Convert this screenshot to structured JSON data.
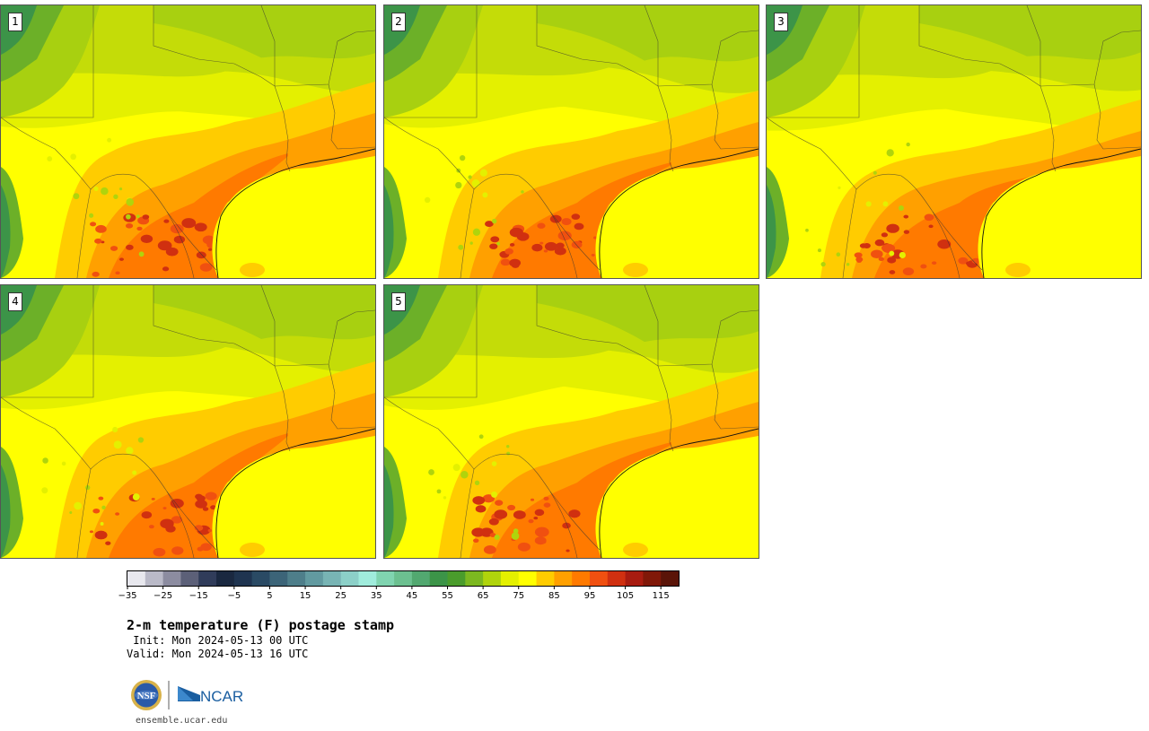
{
  "panels": [
    {
      "label": "1",
      "variant": 0
    },
    {
      "label": "2",
      "variant": 1
    },
    {
      "label": "3",
      "variant": 2
    },
    {
      "label": "4",
      "variant": 3
    },
    {
      "label": "5",
      "variant": 4
    }
  ],
  "colorbar": {
    "colors": [
      "#e8e8ee",
      "#babac8",
      "#8c8ca0",
      "#5c6078",
      "#303c5a",
      "#1a2840",
      "#1f3450",
      "#2a4a64",
      "#3c6478",
      "#4e7e8a",
      "#629aa0",
      "#78b4b4",
      "#8cd0c8",
      "#a0ecdc",
      "#80d4b0",
      "#6cc090",
      "#52a870",
      "#3c9448",
      "#4a9c2c",
      "#7cb820",
      "#b0d40c",
      "#e4f000",
      "#ffff00",
      "#ffcc00",
      "#ffa000",
      "#ff7a00",
      "#f05010",
      "#d03010",
      "#a81c10",
      "#801808",
      "#5a1408"
    ],
    "tick_labels": [
      "−35",
      "−25",
      "−15",
      "−5",
      "5",
      "15",
      "25",
      "35",
      "45",
      "55",
      "65",
      "75",
      "85",
      "95",
      "105",
      "115"
    ]
  },
  "title": "2-m temperature (F) postage stamp",
  "init": " Init: Mon 2024-05-13 00 UTC",
  "valid": "Valid: Mon 2024-05-13 16 UTC",
  "logo": {
    "nsf": "NSF",
    "ncar": "NCAR"
  },
  "site": "ensemble.ucar.edu"
}
